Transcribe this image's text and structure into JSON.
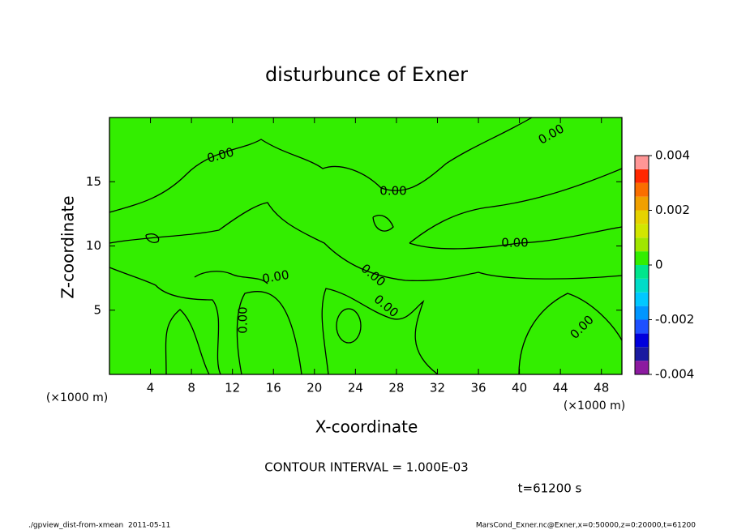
{
  "chart_data": {
    "type": "contour",
    "title": "disturbunce of Exner",
    "xlabel": "X-coordinate",
    "ylabel": "Z-coordinate",
    "unit_label": "(×1000 m)",
    "xlim": [
      0,
      50
    ],
    "xticks": [
      4,
      8,
      12,
      16,
      20,
      24,
      28,
      32,
      36,
      40,
      44,
      48
    ],
    "ylim": [
      0,
      20
    ],
    "yticks": [
      5,
      10,
      15
    ],
    "contour_label": {
      "value": 0,
      "label": "0.00"
    },
    "contour_interval_text": "CONTOUR INTERVAL = 1.000E-03",
    "time_text": "t=61200 s",
    "colorbar": {
      "levels": [
        -0.004,
        -0.0035,
        -0.003,
        -0.0025,
        -0.002,
        -0.0015,
        -0.001,
        -0.0005,
        0,
        0.0005,
        0.001,
        0.0015,
        0.002,
        0.0025,
        0.003,
        0.0035,
        0.004
      ],
      "colors": [
        "#8c1aa0",
        "#1a1aa0",
        "#0000dc",
        "#1e50ff",
        "#0096ff",
        "#00c8ff",
        "#00dcc8",
        "#00e68c",
        "#33ee00",
        "#a0e600",
        "#d2e600",
        "#e6d200",
        "#f0a000",
        "#fa6e00",
        "#ff2800",
        "#ff9696"
      ],
      "ticks": [
        -0.004,
        -0.002,
        0,
        0.002,
        0.004
      ]
    },
    "footer_left": "./gpview_dist-from-xmean  2011-05-11",
    "footer_right": "MarsCond_Exner.nc@Exner,x=0:50000,z=0:20000,t=61200"
  }
}
